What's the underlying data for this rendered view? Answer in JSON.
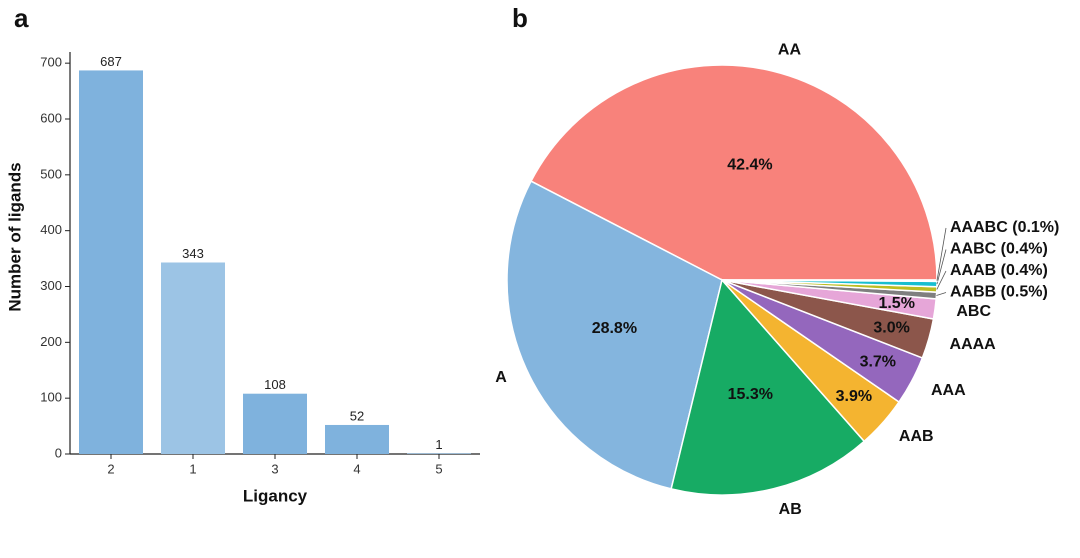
{
  "chart_data": [
    {
      "type": "bar",
      "title": "a",
      "xlabel": "Ligancy",
      "ylabel": "Number of ligands",
      "categories": [
        "2",
        "1",
        "3",
        "4",
        "5"
      ],
      "values": [
        687,
        343,
        108,
        52,
        1
      ],
      "colors": [
        "#7fb2dd",
        "#9cc4e5",
        "#7fb2dd",
        "#7fb2dd",
        "#7fb2dd"
      ],
      "ylim": [
        0,
        720
      ],
      "yticks": [
        0,
        100,
        200,
        300,
        400,
        500,
        600,
        700
      ]
    },
    {
      "type": "pie",
      "title": "b",
      "categories": [
        "AA",
        "A",
        "AB",
        "AAB",
        "AAA",
        "AAAA",
        "ABC",
        "AABB",
        "AAAB",
        "AABC",
        "AAABC"
      ],
      "values": [
        42.4,
        28.8,
        15.3,
        3.9,
        3.7,
        3.0,
        1.5,
        0.5,
        0.4,
        0.4,
        0.1
      ],
      "value_labels": [
        "42.4%",
        "28.8%",
        "15.3%",
        "3.9%",
        "3.7%",
        "3.0%",
        "1.5%",
        "(0.5%)",
        "(0.4%)",
        "(0.4%)",
        "(0.1%)"
      ],
      "colors": [
        "#f8827b",
        "#84b5de",
        "#17ab64",
        "#f4b430",
        "#9467bd",
        "#8c564b",
        "#e6a6d8",
        "#7f7f7f",
        "#bcbd22",
        "#17becf",
        "#aec7e8"
      ]
    }
  ]
}
